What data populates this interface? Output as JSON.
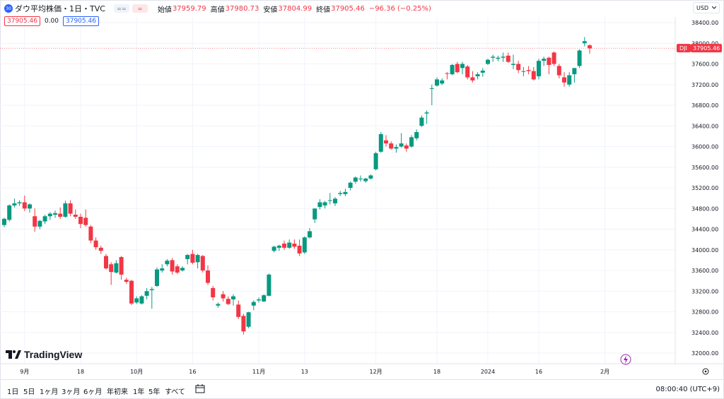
{
  "legend": {
    "badge": "30",
    "title": "ダウ平均株価・1日・TVC",
    "eq1": "==",
    "eq2": "=",
    "open_label": "始値",
    "open_value": "37959.79",
    "high_label": "高値",
    "high_value": "37980.73",
    "low_label": "安値",
    "low_value": "37804.99",
    "close_label": "終値",
    "close_value": "37905.46",
    "change": "−96.36 (−0.25%)",
    "sell_price": "37905.46",
    "spread": "0.00",
    "buy_price": "37905.46"
  },
  "currency": {
    "label": "USD",
    "chevron": "chevron-down-icon"
  },
  "symbol_tag": "DJI",
  "last_price_tag": "37905.46",
  "brand": "TradingView",
  "bottom": {
    "periods": [
      "1日",
      "5日",
      "1ヶ月",
      "3ヶ月",
      "6ヶ月",
      "年初来",
      "1年",
      "5年",
      "すべて"
    ],
    "timezone": "08:00:40 (UTC+9)"
  },
  "colors": {
    "up": "#089981",
    "down": "#f23645",
    "accent": "#2962ff"
  },
  "chart_data": {
    "type": "candlestick",
    "ylim": [
      31850,
      38450
    ],
    "y_ticks": [
      32000,
      32400,
      32800,
      33200,
      33600,
      34000,
      34400,
      34800,
      35200,
      35600,
      36000,
      36400,
      36800,
      37200,
      37600,
      38000,
      38400
    ],
    "y_tick_labels": [
      "32000.00",
      "32400.00",
      "32800.00",
      "33200.00",
      "33600.00",
      "34000.00",
      "34400.00",
      "34800.00",
      "35200.00",
      "35600.00",
      "36000.00",
      "36400.00",
      "36800.00",
      "37200.00",
      "37600.00",
      "38000.00",
      "38400.00"
    ],
    "x_labels": [
      {
        "index": 4,
        "label": "9月"
      },
      {
        "index": 15,
        "label": "18"
      },
      {
        "index": 26,
        "label": "10月"
      },
      {
        "index": 37,
        "label": "16"
      },
      {
        "index": 50,
        "label": "11月"
      },
      {
        "index": 59,
        "label": "13"
      },
      {
        "index": 73,
        "label": "12月"
      },
      {
        "index": 85,
        "label": "18"
      },
      {
        "index": 95,
        "label": "2024"
      },
      {
        "index": 105,
        "label": "16"
      },
      {
        "index": 118,
        "label": "2月"
      }
    ],
    "candles": [
      [
        34480,
        34620,
        34440,
        34600
      ],
      [
        34580,
        34880,
        34550,
        34860
      ],
      [
        34860,
        34990,
        34820,
        34900
      ],
      [
        34900,
        34960,
        34850,
        34920
      ],
      [
        34920,
        35050,
        34750,
        34800
      ],
      [
        34800,
        34900,
        34720,
        34880
      ],
      [
        34650,
        34800,
        34350,
        34450
      ],
      [
        34450,
        34580,
        34400,
        34560
      ],
      [
        34550,
        34680,
        34500,
        34650
      ],
      [
        34650,
        34730,
        34580,
        34700
      ],
      [
        34680,
        34760,
        34620,
        34710
      ],
      [
        34700,
        34820,
        34600,
        34640
      ],
      [
        34640,
        34950,
        34620,
        34900
      ],
      [
        34900,
        34960,
        34650,
        34700
      ],
      [
        34680,
        34780,
        34600,
        34640
      ],
      [
        34640,
        34700,
        34420,
        34500
      ],
      [
        34620,
        34780,
        34450,
        34480
      ],
      [
        34450,
        34480,
        34130,
        34180
      ],
      [
        34180,
        34240,
        34000,
        34050
      ],
      [
        34040,
        34080,
        33920,
        33980
      ],
      [
        33880,
        33920,
        33620,
        33640
      ],
      [
        33720,
        33760,
        33320,
        33570
      ],
      [
        33560,
        33800,
        33540,
        33740
      ],
      [
        33860,
        33880,
        33420,
        33520
      ],
      [
        33420,
        33460,
        33340,
        33380
      ],
      [
        33400,
        33420,
        32930,
        32960
      ],
      [
        32980,
        33100,
        32950,
        33060
      ],
      [
        32960,
        33120,
        32940,
        33100
      ],
      [
        33110,
        33260,
        33040,
        33200
      ],
      [
        33220,
        33280,
        32860,
        33240
      ],
      [
        33300,
        33660,
        33280,
        33620
      ],
      [
        33600,
        33720,
        33560,
        33640
      ],
      [
        33720,
        33820,
        33680,
        33790
      ],
      [
        33800,
        33840,
        33520,
        33580
      ],
      [
        33680,
        33720,
        33530,
        33560
      ],
      [
        33600,
        33680,
        33580,
        33650
      ],
      [
        33820,
        33920,
        33720,
        33900
      ],
      [
        33920,
        34000,
        33720,
        33750
      ],
      [
        33760,
        33920,
        33640,
        33900
      ],
      [
        33880,
        33900,
        33560,
        33600
      ],
      [
        33600,
        33700,
        33320,
        33360
      ],
      [
        33260,
        33300,
        33020,
        33080
      ],
      [
        32920,
        32980,
        32880,
        32950
      ],
      [
        33140,
        33200,
        33000,
        33060
      ],
      [
        33050,
        33100,
        32930,
        32950
      ],
      [
        33040,
        33140,
        32920,
        33100
      ],
      [
        32940,
        33020,
        32660,
        32700
      ],
      [
        32720,
        32760,
        32360,
        32420
      ],
      [
        32510,
        32800,
        32480,
        32790
      ],
      [
        32920,
        33020,
        32830,
        32990
      ],
      [
        33020,
        33080,
        32980,
        33040
      ],
      [
        33000,
        33140,
        32990,
        33120
      ],
      [
        33110,
        33540,
        33100,
        33520
      ],
      [
        33980,
        34080,
        33950,
        34060
      ],
      [
        34040,
        34100,
        33980,
        34080
      ],
      [
        34120,
        34180,
        34000,
        34040
      ],
      [
        34040,
        34200,
        34020,
        34140
      ],
      [
        34120,
        34200,
        34020,
        34060
      ],
      [
        34080,
        34200,
        33880,
        33930
      ],
      [
        33950,
        34260,
        33920,
        34240
      ],
      [
        34240,
        34420,
        34220,
        34360
      ],
      [
        34590,
        34800,
        34520,
        34800
      ],
      [
        34830,
        34980,
        34780,
        34920
      ],
      [
        34860,
        34950,
        34800,
        34920
      ],
      [
        34960,
        35100,
        34880,
        34960
      ],
      [
        34900,
        35020,
        34850,
        34990
      ],
      [
        35080,
        35140,
        35040,
        35100
      ],
      [
        35080,
        35180,
        35040,
        35120
      ],
      [
        35200,
        35320,
        35150,
        35300
      ],
      [
        35320,
        35420,
        35280,
        35400
      ],
      [
        35380,
        35440,
        35320,
        35380
      ],
      [
        35330,
        35390,
        35300,
        35380
      ],
      [
        35380,
        35460,
        35360,
        35440
      ],
      [
        35560,
        35900,
        35540,
        35870
      ],
      [
        35900,
        36280,
        35880,
        36240
      ],
      [
        36120,
        36220,
        36000,
        36060
      ],
      [
        36060,
        36100,
        35940,
        35960
      ],
      [
        35960,
        36040,
        35880,
        35990
      ],
      [
        36000,
        36260,
        35980,
        36060
      ],
      [
        36020,
        36060,
        35900,
        35960
      ],
      [
        36000,
        36220,
        35980,
        36180
      ],
      [
        36160,
        36330,
        36120,
        36280
      ],
      [
        36400,
        36600,
        36380,
        36560
      ],
      [
        36640,
        36700,
        36440,
        36660
      ],
      [
        37120,
        37200,
        36800,
        37130
      ],
      [
        37180,
        37340,
        37160,
        37300
      ],
      [
        37220,
        37320,
        37190,
        37280
      ],
      [
        37420,
        37440,
        37300,
        37410
      ],
      [
        37400,
        37600,
        37380,
        37580
      ],
      [
        37600,
        37640,
        37420,
        37440
      ],
      [
        37520,
        37640,
        37400,
        37600
      ],
      [
        37550,
        37580,
        37300,
        37340
      ],
      [
        37340,
        37460,
        37240,
        37280
      ],
      [
        37360,
        37440,
        37300,
        37400
      ],
      [
        37430,
        37520,
        37350,
        37470
      ],
      [
        37600,
        37700,
        37580,
        37680
      ],
      [
        37720,
        37780,
        37640,
        37740
      ],
      [
        37700,
        37760,
        37650,
        37720
      ],
      [
        37720,
        37820,
        37640,
        37740
      ],
      [
        37760,
        37820,
        37620,
        37640
      ],
      [
        37580,
        37780,
        37500,
        37600
      ],
      [
        37600,
        37660,
        37420,
        37480
      ],
      [
        37460,
        37540,
        37360,
        37460
      ],
      [
        37480,
        37560,
        37400,
        37460
      ],
      [
        37460,
        37540,
        37280,
        37300
      ],
      [
        37360,
        37700,
        37300,
        37660
      ],
      [
        37660,
        37740,
        37560,
        37700
      ],
      [
        37720,
        37740,
        37400,
        37580
      ],
      [
        37820,
        37840,
        37560,
        37600
      ],
      [
        37560,
        37600,
        37320,
        37380
      ],
      [
        37340,
        37440,
        37160,
        37240
      ],
      [
        37200,
        37440,
        37160,
        37380
      ],
      [
        37400,
        37520,
        37240,
        37520
      ],
      [
        37560,
        37880,
        37520,
        37860
      ],
      [
        38000,
        38120,
        37940,
        38040
      ],
      [
        37960,
        37980,
        37800,
        37900
      ]
    ]
  }
}
